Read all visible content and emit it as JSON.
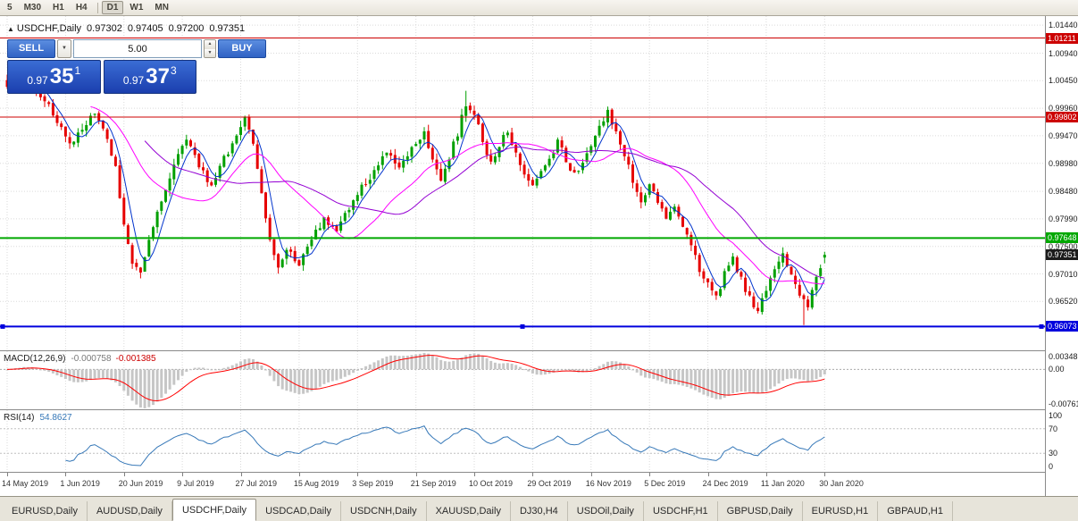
{
  "icons": {
    "one_click_collapse": "▲",
    "volume_dropdown": "▼",
    "spin_up": "▲",
    "spin_down": "▼"
  },
  "toolbar": {
    "timeframes": [
      "5",
      "M30",
      "H1",
      "H4",
      "D1",
      "W1",
      "MN"
    ],
    "active_timeframe": "D1",
    "separator_after": "H4"
  },
  "chart_header": {
    "symbol": "USDCHF,Daily",
    "open": "0.97302",
    "high": "0.97405",
    "low": "0.97200",
    "close": "0.97351"
  },
  "trade_panel": {
    "sell_label": "SELL",
    "buy_label": "BUY",
    "volume": "5.00",
    "bid": {
      "prefix": "0.97",
      "big": "35",
      "sup": "1"
    },
    "ask": {
      "prefix": "0.97",
      "big": "37",
      "sup": "3"
    }
  },
  "price_axis": {
    "labels": [
      "1.01440",
      "1.00940",
      "1.00450",
      "0.99960",
      "0.99470",
      "0.98980",
      "0.98480",
      "0.97990",
      "0.97500",
      "0.97010",
      "0.96520"
    ]
  },
  "levels": [
    {
      "label": "1.01211",
      "value": 1.01211,
      "color": "#cc0000",
      "width": 1,
      "selected": false
    },
    {
      "label": "0.99802",
      "value": 0.99802,
      "color": "#cc0000",
      "width": 1,
      "selected": false
    },
    {
      "label": "0.97648",
      "value": 0.97648,
      "color": "#00a800",
      "width": 2,
      "selected": false
    },
    {
      "label": "0.96073",
      "value": 0.96073,
      "color": "#0000dd",
      "width": 2,
      "selected": true
    }
  ],
  "current_price_tag": {
    "label": "0.97351",
    "value": 0.97351,
    "bg": "#1b1b1b"
  },
  "macd": {
    "title": "MACD(12,26,9)",
    "main_value": "-0.000758",
    "signal_value": "-0.001385",
    "axis_labels": [
      "0.00348",
      "0.00",
      "-0.00761"
    ],
    "histogram_color": "#c6c6c6",
    "signal_color": "#ff0000"
  },
  "rsi": {
    "title": "RSI(14)",
    "value": "54.8627",
    "axis_labels": [
      "100",
      "70",
      "30",
      "0"
    ],
    "level_lines": [
      70,
      30
    ],
    "line_color": "#3678b8"
  },
  "date_axis": {
    "labels": [
      "14 May 2019",
      "1 Jun 2019",
      "20 Jun 2019",
      "9 Jul 2019",
      "27 Jul 2019",
      "15 Aug 2019",
      "3 Sep 2019",
      "21 Sep 2019",
      "10 Oct 2019",
      "29 Oct 2019",
      "16 Nov 2019",
      "5 Dec 2019",
      "24 Dec 2019",
      "11 Jan 2020",
      "30 Jan 2020"
    ]
  },
  "tabs": {
    "items": [
      "EURUSD,Daily",
      "AUDUSD,Daily",
      "USDCHF,Daily",
      "USDCAD,Daily",
      "USDCNH,Daily",
      "XAUUSD,Daily",
      "DJ30,H4",
      "USDOil,Daily",
      "USDCHF,H1",
      "GBPUSD,Daily",
      "EURUSD,H1",
      "GBPAUD,H1"
    ],
    "active": "USDCHF,Daily"
  },
  "chart_data": {
    "type": "candlestick",
    "symbol": "USDCHF",
    "timeframe": "Daily",
    "ohlc": {
      "open": 0.97302,
      "high": 0.97405,
      "low": 0.972,
      "close": 0.97351
    },
    "y_visible_range": [
      0.9565,
      1.016
    ],
    "x_first_label": "14 May 2019",
    "x_last_label": "30 Jan 2020",
    "candle_count": 197,
    "label_every": 14,
    "bull_color": "#00a000",
    "bear_color": "#e60000",
    "close_anchors": [
      [
        0,
        1.004
      ],
      [
        4,
        1.0058
      ],
      [
        8,
        1.002
      ],
      [
        12,
        0.9975
      ],
      [
        15,
        0.993
      ],
      [
        18,
        0.996
      ],
      [
        21,
        0.9985
      ],
      [
        24,
        0.994
      ],
      [
        26,
        0.989
      ],
      [
        28,
        0.979
      ],
      [
        30,
        0.9715
      ],
      [
        32,
        0.97
      ],
      [
        34,
        0.976
      ],
      [
        37,
        0.983
      ],
      [
        40,
        0.99
      ],
      [
        43,
        0.9935
      ],
      [
        46,
        0.9895
      ],
      [
        49,
        0.9855
      ],
      [
        52,
        0.9905
      ],
      [
        55,
        0.995
      ],
      [
        57,
        0.9975
      ],
      [
        59,
        0.993
      ],
      [
        61,
        0.9845
      ],
      [
        63,
        0.9755
      ],
      [
        65,
        0.9715
      ],
      [
        67,
        0.9745
      ],
      [
        70,
        0.972
      ],
      [
        73,
        0.9765
      ],
      [
        76,
        0.98
      ],
      [
        79,
        0.9775
      ],
      [
        82,
        0.982
      ],
      [
        85,
        0.9855
      ],
      [
        88,
        0.9885
      ],
      [
        91,
        0.9915
      ],
      [
        94,
        0.989
      ],
      [
        97,
        0.9925
      ],
      [
        100,
        0.9955
      ],
      [
        102,
        0.9905
      ],
      [
        104,
        0.987
      ],
      [
        106,
        0.991
      ],
      [
        108,
        0.995
      ],
      [
        110,
        1.0005
      ],
      [
        112,
        0.999
      ],
      [
        114,
        0.9935
      ],
      [
        116,
        0.9895
      ],
      [
        118,
        0.993
      ],
      [
        120,
        0.9955
      ],
      [
        122,
        0.992
      ],
      [
        124,
        0.988
      ],
      [
        126,
        0.9855
      ],
      [
        128,
        0.988
      ],
      [
        130,
        0.991
      ],
      [
        132,
        0.9935
      ],
      [
        134,
        0.9905
      ],
      [
        136,
        0.9875
      ],
      [
        138,
        0.9905
      ],
      [
        140,
        0.9935
      ],
      [
        142,
        0.9965
      ],
      [
        144,
        0.999
      ],
      [
        146,
        0.995
      ],
      [
        148,
        0.9915
      ],
      [
        150,
        0.987
      ],
      [
        152,
        0.983
      ],
      [
        154,
        0.9855
      ],
      [
        156,
        0.983
      ],
      [
        158,
        0.98
      ],
      [
        160,
        0.9825
      ],
      [
        162,
        0.979
      ],
      [
        164,
        0.975
      ],
      [
        166,
        0.971
      ],
      [
        168,
        0.968
      ],
      [
        170,
        0.966
      ],
      [
        172,
        0.97
      ],
      [
        174,
        0.9725
      ],
      [
        176,
        0.969
      ],
      [
        178,
        0.966
      ],
      [
        180,
        0.9635
      ],
      [
        182,
        0.967
      ],
      [
        184,
        0.971
      ],
      [
        186,
        0.9735
      ],
      [
        188,
        0.97
      ],
      [
        190,
        0.9665
      ],
      [
        192,
        0.9645
      ],
      [
        194,
        0.969
      ],
      [
        196,
        0.97351
      ]
    ],
    "spikes": [
      {
        "i": 32,
        "low": 0.9693
      },
      {
        "i": 110,
        "high": 1.0027
      },
      {
        "i": 191,
        "low": 0.961
      }
    ],
    "moving_averages": [
      {
        "period": 5,
        "color": "#0033cc"
      },
      {
        "period": 21,
        "color": "#ff00ff"
      },
      {
        "period": 34,
        "color": "#9400d3"
      }
    ]
  }
}
